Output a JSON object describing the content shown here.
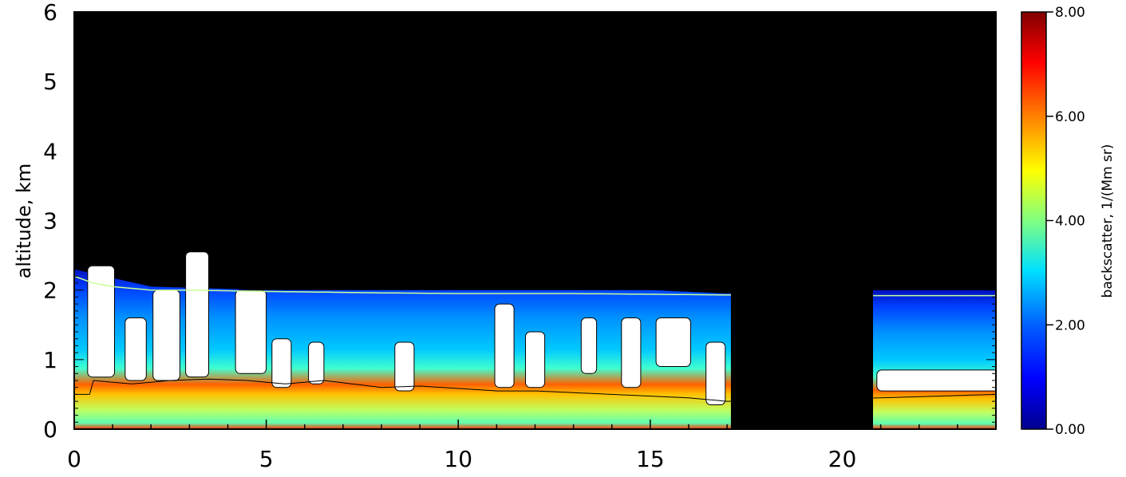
{
  "chart_data": {
    "type": "heatmap",
    "title": "",
    "xlabel": "",
    "ylabel": "altitude, km",
    "xlim": [
      0,
      24
    ],
    "ylim": [
      0,
      6
    ],
    "x_ticks": [
      0,
      5,
      10,
      15,
      20
    ],
    "y_ticks": [
      0,
      1,
      2,
      3,
      4,
      5,
      6
    ],
    "x_tick_labels": [
      "0",
      "5",
      "10",
      "15",
      "20"
    ],
    "y_tick_labels": [
      "0",
      "1",
      "2",
      "3",
      "4",
      "5",
      "6"
    ],
    "colorbar": {
      "label": "backscatter, 1/(Mm sr)",
      "range": [
        0,
        8
      ],
      "ticks": [
        0,
        2,
        4,
        6,
        8
      ],
      "tick_labels": [
        "0.00",
        "2.00",
        "4.00",
        "6.00",
        "8.00"
      ],
      "colormap": [
        "#00008f",
        "#0000ff",
        "#0080ff",
        "#00ffff",
        "#80ff80",
        "#ffff00",
        "#ff8000",
        "#ff0000",
        "#800000"
      ]
    },
    "data_gap_x": [
      17.1,
      20.8
    ],
    "boundary_layer_top_km": [
      [
        0.0,
        2.2
      ],
      [
        0.5,
        2.1
      ],
      [
        1.0,
        2.05
      ],
      [
        2.0,
        2.0
      ],
      [
        3.0,
        2.0
      ],
      [
        5.0,
        1.98
      ],
      [
        8.0,
        1.96
      ],
      [
        10.0,
        1.95
      ],
      [
        13.0,
        1.95
      ],
      [
        15.0,
        1.94
      ],
      [
        17.0,
        1.93
      ],
      [
        21.0,
        1.92
      ],
      [
        24.0,
        1.92
      ]
    ],
    "aerosol_layer_top_km": [
      [
        0.0,
        2.3
      ],
      [
        2.0,
        2.05
      ],
      [
        5.0,
        2.0
      ],
      [
        10.0,
        2.0
      ],
      [
        15.0,
        2.0
      ],
      [
        17.0,
        1.95
      ],
      [
        21.0,
        2.0
      ],
      [
        24.0,
        2.0
      ]
    ],
    "cloud_base_km": [
      [
        0.5,
        0.7
      ],
      [
        1.5,
        0.65
      ],
      [
        2.5,
        0.7
      ],
      [
        3.5,
        0.72
      ],
      [
        4.5,
        0.7
      ],
      [
        5.5,
        0.65
      ],
      [
        6.5,
        0.7
      ],
      [
        8.0,
        0.6
      ],
      [
        9.0,
        0.62
      ],
      [
        11.0,
        0.55
      ],
      [
        12.0,
        0.55
      ],
      [
        14.0,
        0.5
      ],
      [
        16.0,
        0.45
      ],
      [
        17.0,
        0.4
      ],
      [
        21.0,
        0.45
      ],
      [
        24.0,
        0.5
      ]
    ]
  },
  "colors": {
    "background": "#ffffff",
    "plot_background": "#000000",
    "cloud": "#ffffff",
    "bl_line": "#c8ff9a"
  }
}
